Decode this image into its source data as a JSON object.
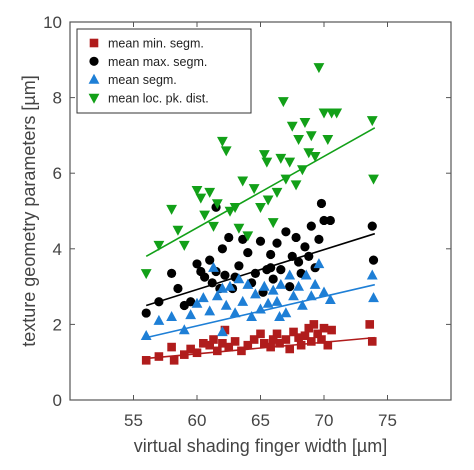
{
  "chart_data": {
    "type": "scatter",
    "xlabel": "virtual shading finger width [µm]",
    "ylabel": "texture geometry parameters [µm]",
    "xlim": [
      50,
      80
    ],
    "ylim": [
      0,
      10
    ],
    "xticks": [
      55,
      60,
      65,
      70,
      75
    ],
    "yticks": [
      0,
      2,
      4,
      6,
      8,
      10
    ],
    "grid": false,
    "legend_position": "top-left",
    "series": [
      {
        "name": "mean min. segm.",
        "marker": "square",
        "color": "#b01c1c",
        "points": [
          [
            56,
            1.05
          ],
          [
            57,
            1.15
          ],
          [
            58,
            1.4
          ],
          [
            58.2,
            1.05
          ],
          [
            59,
            1.2
          ],
          [
            59.5,
            1.35
          ],
          [
            60,
            1.25
          ],
          [
            60.5,
            1.5
          ],
          [
            61,
            1.45
          ],
          [
            61.3,
            1.6
          ],
          [
            61.6,
            1.3
          ],
          [
            62,
            1.5
          ],
          [
            62.2,
            1.85
          ],
          [
            62.5,
            1.4
          ],
          [
            63,
            1.55
          ],
          [
            63.5,
            1.3
          ],
          [
            64,
            1.45
          ],
          [
            64.5,
            1.6
          ],
          [
            65,
            1.75
          ],
          [
            65.3,
            1.5
          ],
          [
            65.8,
            1.4
          ],
          [
            66,
            1.6
          ],
          [
            66.3,
            1.75
          ],
          [
            66.5,
            1.5
          ],
          [
            67,
            1.6
          ],
          [
            67.3,
            1.35
          ],
          [
            67.6,
            1.8
          ],
          [
            68,
            1.65
          ],
          [
            68.2,
            1.45
          ],
          [
            68.5,
            1.7
          ],
          [
            68.8,
            1.9
          ],
          [
            69,
            1.55
          ],
          [
            69.2,
            2.0
          ],
          [
            69.5,
            1.75
          ],
          [
            69.8,
            1.6
          ],
          [
            70,
            1.9
          ],
          [
            70.3,
            1.45
          ],
          [
            70.6,
            1.85
          ],
          [
            73.6,
            2.0
          ],
          [
            73.8,
            1.55
          ]
        ],
        "fit": [
          [
            56,
            1.1
          ],
          [
            74,
            1.65
          ]
        ]
      },
      {
        "name": "mean max. segm.",
        "marker": "circle",
        "color": "#000000",
        "points": [
          [
            56,
            2.3
          ],
          [
            57,
            2.6
          ],
          [
            58,
            3.35
          ],
          [
            58.5,
            2.95
          ],
          [
            59,
            2.5
          ],
          [
            59.5,
            2.6
          ],
          [
            60,
            3.6
          ],
          [
            60.3,
            3.4
          ],
          [
            60.6,
            3.25
          ],
          [
            61,
            3.7
          ],
          [
            61.2,
            3.1
          ],
          [
            61.5,
            3.4
          ],
          [
            61.8,
            2.95
          ],
          [
            62,
            4.0
          ],
          [
            62.2,
            3.3
          ],
          [
            62.5,
            4.3
          ],
          [
            62.8,
            2.95
          ],
          [
            63,
            3.25
          ],
          [
            63.3,
            3.55
          ],
          [
            63.6,
            4.25
          ],
          [
            64,
            3.9
          ],
          [
            64.3,
            3.1
          ],
          [
            64.6,
            3.35
          ],
          [
            65,
            4.2
          ],
          [
            65.2,
            2.85
          ],
          [
            65.5,
            3.45
          ],
          [
            65.8,
            3.85
          ],
          [
            66,
            3.2
          ],
          [
            66.3,
            4.15
          ],
          [
            66.6,
            3.45
          ],
          [
            67,
            4.45
          ],
          [
            67.3,
            3.0
          ],
          [
            67.5,
            3.8
          ],
          [
            67.8,
            4.3
          ],
          [
            68,
            3.65
          ],
          [
            68.2,
            3.35
          ],
          [
            68.5,
            4.05
          ],
          [
            68.8,
            3.8
          ],
          [
            69,
            4.6
          ],
          [
            69.3,
            3.5
          ],
          [
            69.6,
            4.25
          ],
          [
            69.8,
            5.2
          ],
          [
            70,
            4.75
          ],
          [
            70.5,
            4.75
          ],
          [
            73.8,
            4.6
          ],
          [
            73.9,
            3.7
          ],
          [
            61.5,
            5.1
          ],
          [
            65.8,
            3.5
          ]
        ],
        "fit": [
          [
            56,
            2.5
          ],
          [
            74,
            4.4
          ]
        ]
      },
      {
        "name": "mean segm.",
        "marker": "triangle-up",
        "color": "#1e7fd6",
        "points": [
          [
            56,
            1.7
          ],
          [
            57,
            2.1
          ],
          [
            58,
            2.2
          ],
          [
            59,
            1.85
          ],
          [
            59.5,
            2.25
          ],
          [
            60,
            2.55
          ],
          [
            60.5,
            2.7
          ],
          [
            61,
            2.35
          ],
          [
            61.3,
            3.5
          ],
          [
            61.6,
            2.75
          ],
          [
            62,
            2.95
          ],
          [
            62.3,
            2.5
          ],
          [
            62.6,
            3.0
          ],
          [
            63,
            2.3
          ],
          [
            63.3,
            3.2
          ],
          [
            63.6,
            2.6
          ],
          [
            64,
            3.05
          ],
          [
            64.3,
            2.2
          ],
          [
            64.6,
            2.8
          ],
          [
            65,
            2.4
          ],
          [
            65.3,
            3.0
          ],
          [
            65.6,
            2.55
          ],
          [
            66,
            2.9
          ],
          [
            66.3,
            2.6
          ],
          [
            66.6,
            3.05
          ],
          [
            67,
            2.3
          ],
          [
            67.3,
            3.3
          ],
          [
            67.6,
            2.75
          ],
          [
            68,
            3.0
          ],
          [
            68.3,
            2.5
          ],
          [
            68.6,
            3.3
          ],
          [
            69,
            2.75
          ],
          [
            69.3,
            3.05
          ],
          [
            69.6,
            3.6
          ],
          [
            70,
            2.85
          ],
          [
            70.5,
            2.65
          ],
          [
            73.8,
            3.3
          ],
          [
            73.9,
            2.7
          ],
          [
            62,
            1.8
          ],
          [
            66.5,
            2.2
          ]
        ],
        "fit": [
          [
            56,
            1.65
          ],
          [
            74,
            3.05
          ]
        ]
      },
      {
        "name": "mean loc. pk. dist.",
        "marker": "triangle-down",
        "color": "#12a018",
        "points": [
          [
            56,
            3.35
          ],
          [
            57,
            4.1
          ],
          [
            58,
            5.05
          ],
          [
            58.5,
            4.5
          ],
          [
            59,
            4.1
          ],
          [
            60,
            5.55
          ],
          [
            60.3,
            5.35
          ],
          [
            60.6,
            4.9
          ],
          [
            61,
            5.5
          ],
          [
            61.3,
            4.6
          ],
          [
            61.6,
            5.2
          ],
          [
            62,
            6.85
          ],
          [
            62.3,
            6.6
          ],
          [
            62.6,
            5.0
          ],
          [
            63,
            5.1
          ],
          [
            63.3,
            4.55
          ],
          [
            63.6,
            5.8
          ],
          [
            64,
            4.35
          ],
          [
            64.5,
            5.6
          ],
          [
            65,
            5.1
          ],
          [
            65.3,
            6.5
          ],
          [
            65.6,
            5.3
          ],
          [
            66,
            4.7
          ],
          [
            66.3,
            5.5
          ],
          [
            66.6,
            6.4
          ],
          [
            67,
            5.85
          ],
          [
            67.3,
            6.3
          ],
          [
            67.5,
            7.25
          ],
          [
            67.8,
            5.7
          ],
          [
            68,
            6.9
          ],
          [
            68.3,
            6.1
          ],
          [
            68.5,
            7.35
          ],
          [
            68.8,
            6.55
          ],
          [
            69,
            7.0
          ],
          [
            69.3,
            6.45
          ],
          [
            69.6,
            8.8
          ],
          [
            70,
            7.6
          ],
          [
            70.3,
            6.9
          ],
          [
            70.6,
            7.6
          ],
          [
            71,
            7.6
          ],
          [
            73.8,
            7.4
          ],
          [
            73.9,
            5.85
          ],
          [
            65.5,
            6.3
          ],
          [
            66.8,
            7.9
          ]
        ],
        "fit": [
          [
            56,
            3.8
          ],
          [
            74,
            7.2
          ]
        ]
      }
    ]
  }
}
